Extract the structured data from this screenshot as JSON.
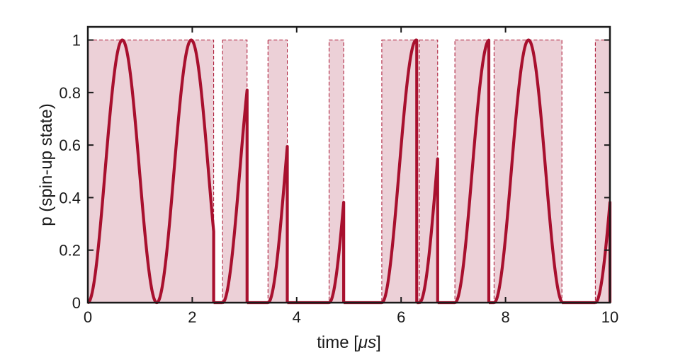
{
  "chart_data": {
    "type": "line",
    "title": "",
    "xlabel_prefix": "time [",
    "xlabel_unit": "μs",
    "xlabel_suffix": "]",
    "ylabel": "p (spin-up state)",
    "xlim": [
      0,
      10
    ],
    "ylim": [
      0,
      1.05
    ],
    "xticks": [
      0,
      2,
      4,
      6,
      8,
      10
    ],
    "yticks": [
      0,
      0.2,
      0.4,
      0.6,
      0.8,
      1
    ],
    "xtick_labels": [
      "0",
      "2",
      "4",
      "6",
      "8",
      "10"
    ],
    "ytick_labels": [
      "0",
      "0.2",
      "0.4",
      "0.6",
      "0.8",
      "1"
    ],
    "grid": false,
    "colors": {
      "line": "#a8102e",
      "shade_fill": "#ecd0d7",
      "shade_edge": "#a8102e",
      "axis": "#1a1a1a"
    },
    "drive_on_intervals": [
      [
        0.0,
        2.41
      ],
      [
        2.58,
        3.05
      ],
      [
        3.45,
        3.82
      ],
      [
        4.62,
        4.9
      ],
      [
        5.63,
        6.3
      ],
      [
        6.35,
        6.7
      ],
      [
        7.03,
        7.68
      ],
      [
        7.78,
        9.08
      ],
      [
        9.72,
        10.0
      ]
    ],
    "rabi_period_us": 1.32,
    "series": [
      {
        "x": [
          0,
          0.33,
          0.66,
          0.79,
          0.99,
          1.32
        ],
        "y": [
          0,
          0.5,
          0.99,
          1.0,
          0.5,
          0
        ]
      }
    ]
  }
}
